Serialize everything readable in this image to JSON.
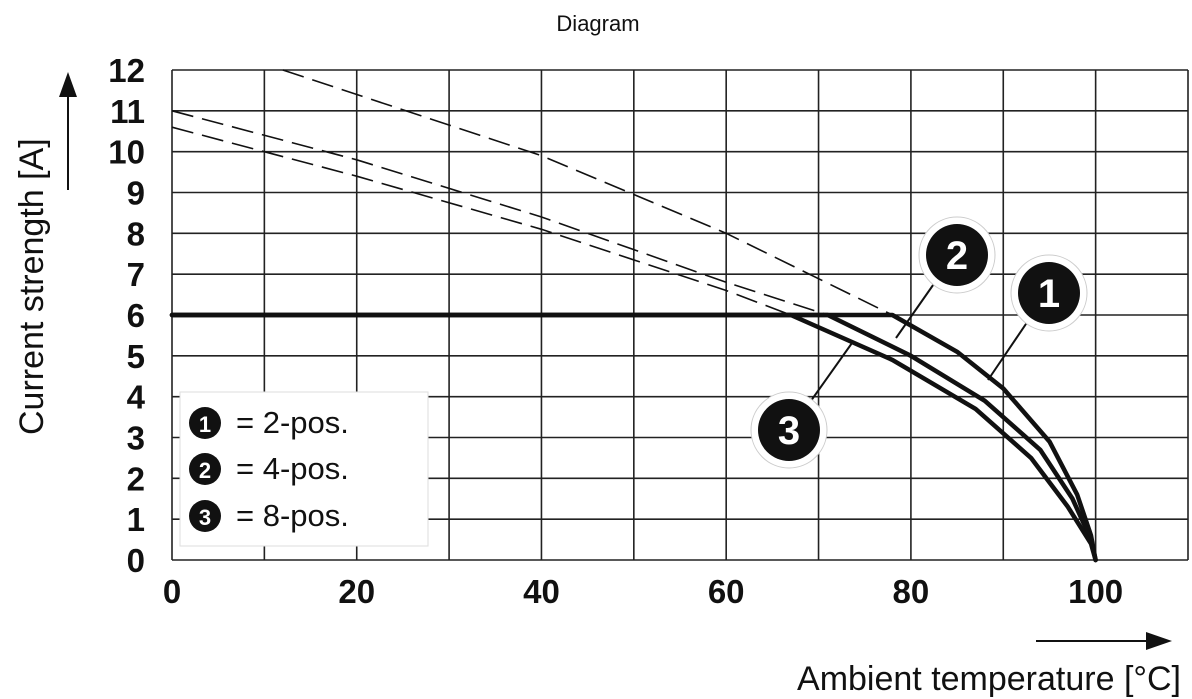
{
  "caption": "Diagram",
  "chart_data": {
    "type": "line",
    "xlabel": "Ambient temperature [°C]",
    "ylabel": "Current strength [A]",
    "x_ticks": [
      "0",
      "20",
      "40",
      "60",
      "80",
      "100"
    ],
    "y_ticks": [
      "0",
      "1",
      "2",
      "3",
      "4",
      "5",
      "6",
      "7",
      "8",
      "9",
      "10",
      "11",
      "12"
    ],
    "xlim": [
      0,
      110
    ],
    "ylim": [
      0,
      12
    ],
    "grid": true,
    "legend_position": "bottom-left",
    "series": [
      {
        "id": "1",
        "name": "2-pos.",
        "cap": 6,
        "values": [
          [
            0,
            6
          ],
          [
            78,
            6
          ],
          [
            85,
            5.1
          ],
          [
            90,
            4.2
          ],
          [
            95,
            2.9
          ],
          [
            98,
            1.6
          ],
          [
            99.5,
            0.6
          ],
          [
            100,
            0
          ]
        ],
        "derating_dashed": [
          [
            12,
            12
          ],
          [
            40,
            9.9
          ],
          [
            60,
            8
          ],
          [
            78,
            6
          ]
        ]
      },
      {
        "id": "2",
        "name": "4-pos.",
        "cap": 6,
        "values": [
          [
            0,
            6
          ],
          [
            71,
            6
          ],
          [
            80,
            5.0
          ],
          [
            88,
            3.9
          ],
          [
            94,
            2.7
          ],
          [
            97.5,
            1.5
          ],
          [
            99.5,
            0.5
          ],
          [
            100,
            0
          ]
        ],
        "derating_dashed": [
          [
            0,
            11
          ],
          [
            20,
            9.8
          ],
          [
            40,
            8.4
          ],
          [
            60,
            6.8
          ],
          [
            71,
            6
          ]
        ]
      },
      {
        "id": "3",
        "name": "8-pos.",
        "cap": 6,
        "values": [
          [
            0,
            6
          ],
          [
            67,
            6
          ],
          [
            78,
            4.9
          ],
          [
            87,
            3.7
          ],
          [
            93,
            2.5
          ],
          [
            97,
            1.3
          ],
          [
            99.5,
            0.4
          ],
          [
            100,
            0
          ]
        ],
        "derating_dashed": [
          [
            0,
            10.6
          ],
          [
            20,
            9.4
          ],
          [
            40,
            8.1
          ],
          [
            60,
            6.6
          ],
          [
            67,
            6
          ]
        ]
      }
    ],
    "legend": [
      {
        "number": "1",
        "text": "= 2-pos."
      },
      {
        "number": "2",
        "text": "= 4-pos."
      },
      {
        "number": "3",
        "text": "= 8-pos."
      }
    ],
    "callouts": [
      {
        "number": "2",
        "series": "2",
        "point": [
          78.5,
          5.4
        ]
      },
      {
        "number": "1",
        "series": "1",
        "point": [
          88.5,
          4.4
        ]
      },
      {
        "number": "3",
        "series": "3",
        "point": [
          73.5,
          5.3
        ]
      }
    ],
    "colors": {
      "line": "#111111",
      "grid": "#222222",
      "badge": "#111111",
      "background": "#ffffff"
    }
  }
}
